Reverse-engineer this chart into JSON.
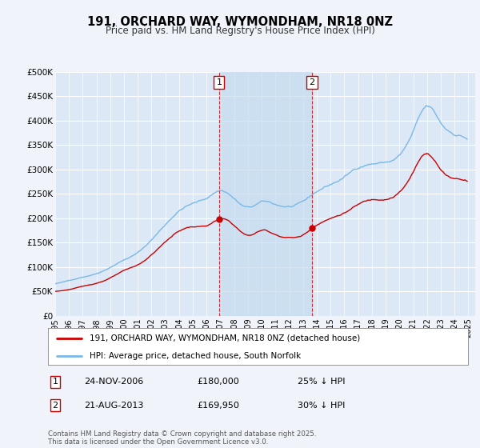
{
  "title": "191, ORCHARD WAY, WYMONDHAM, NR18 0NZ",
  "subtitle": "Price paid vs. HM Land Registry's House Price Index (HPI)",
  "legend_line1": "191, ORCHARD WAY, WYMONDHAM, NR18 0NZ (detached house)",
  "legend_line2": "HPI: Average price, detached house, South Norfolk",
  "footnote": "Contains HM Land Registry data © Crown copyright and database right 2025.\nThis data is licensed under the Open Government Licence v3.0.",
  "sale1_label": "1",
  "sale1_date": "24-NOV-2006",
  "sale1_price": "£180,000",
  "sale1_hpi": "25% ↓ HPI",
  "sale1_year": 2006.9,
  "sale1_value": 180000,
  "sale2_label": "2",
  "sale2_date": "21-AUG-2013",
  "sale2_price": "£169,950",
  "sale2_hpi": "30% ↓ HPI",
  "sale2_year": 2013.65,
  "sale2_value": 169950,
  "hpi_color": "#7ab8e8",
  "price_color": "#cc0000",
  "sale_marker_color": "#cc0000",
  "background_color": "#f0f4fa",
  "plot_bg_color": "#dce8f5",
  "shade_color": "#c5dcf0",
  "grid_color": "#ffffff",
  "ylim": [
    0,
    500000
  ],
  "yticks": [
    0,
    50000,
    100000,
    150000,
    200000,
    250000,
    300000,
    350000,
    400000,
    450000,
    500000
  ],
  "ytick_labels": [
    "£0",
    "£50K",
    "£100K",
    "£150K",
    "£200K",
    "£250K",
    "£300K",
    "£350K",
    "£400K",
    "£450K",
    "£500K"
  ],
  "xtick_years": [
    1995,
    1996,
    1997,
    1998,
    1999,
    2000,
    2001,
    2002,
    2003,
    2004,
    2005,
    2006,
    2007,
    2008,
    2009,
    2010,
    2011,
    2012,
    2013,
    2014,
    2015,
    2016,
    2017,
    2018,
    2019,
    2020,
    2021,
    2022,
    2023,
    2024,
    2025
  ]
}
